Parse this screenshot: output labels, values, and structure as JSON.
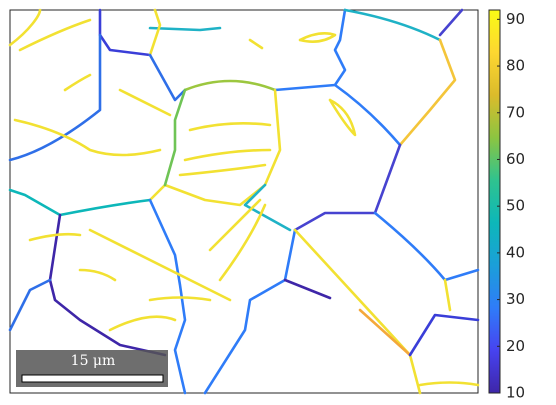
{
  "chart_data": {
    "type": "map",
    "colorbar": {
      "lim": [
        10,
        92
      ],
      "ticks": [
        10,
        20,
        30,
        40,
        50,
        60,
        70,
        80,
        90
      ],
      "colormap": [
        "#3e26a8",
        "#4743f0",
        "#2f7cf8",
        "#1b9fd9",
        "#0db7b9",
        "#2fc38f",
        "#8cc541",
        "#dbbb2b",
        "#fdd731",
        "#f9fb15"
      ]
    },
    "scale_bar": {
      "label": "15 μm"
    }
  }
}
